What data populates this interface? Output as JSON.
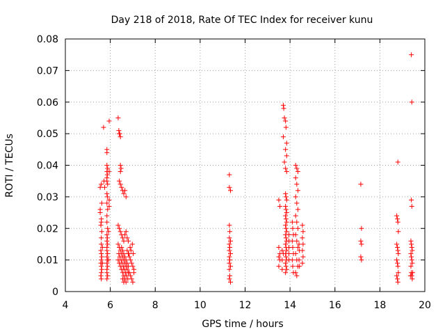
{
  "chart_data": {
    "type": "scatter",
    "title": "Day 218 of 2018, Rate Of TEC Index for receiver kunu",
    "xlabel": "GPS time / hours",
    "ylabel": "ROTI / TECUs",
    "xlim": [
      4,
      20
    ],
    "ylim": [
      0,
      0.08
    ],
    "xticks": [
      "4",
      "6",
      "8",
      "10",
      "12",
      "14",
      "16",
      "18",
      "20"
    ],
    "yticks": [
      "0",
      "0.01",
      "0.02",
      "0.03",
      "0.04",
      "0.05",
      "0.06",
      "0.07",
      "0.08"
    ],
    "grid": true,
    "marker": "+",
    "marker_color": "#ff0000",
    "series": [
      {
        "name": "ROTI",
        "points": [
          [
            5.55,
            0.033
          ],
          [
            5.6,
            0.034
          ],
          [
            5.6,
            0.023
          ],
          [
            5.6,
            0.022
          ],
          [
            5.58,
            0.021
          ],
          [
            5.62,
            0.019
          ],
          [
            5.6,
            0.017
          ],
          [
            5.6,
            0.015
          ],
          [
            5.58,
            0.013
          ],
          [
            5.6,
            0.012
          ],
          [
            5.62,
            0.011
          ],
          [
            5.6,
            0.01
          ],
          [
            5.58,
            0.009
          ],
          [
            5.6,
            0.008
          ],
          [
            5.62,
            0.007
          ],
          [
            5.6,
            0.006
          ],
          [
            5.58,
            0.005
          ],
          [
            5.6,
            0.004
          ],
          [
            5.65,
            0.014
          ],
          [
            5.65,
            0.009
          ],
          [
            5.55,
            0.026
          ],
          [
            5.55,
            0.025
          ],
          [
            5.62,
            0.028
          ],
          [
            5.7,
            0.052
          ],
          [
            5.72,
            0.035
          ],
          [
            5.75,
            0.033
          ],
          [
            5.85,
            0.045
          ],
          [
            5.85,
            0.044
          ],
          [
            5.85,
            0.04
          ],
          [
            5.88,
            0.039
          ],
          [
            5.85,
            0.038
          ],
          [
            5.87,
            0.037
          ],
          [
            5.85,
            0.036
          ],
          [
            5.85,
            0.035
          ],
          [
            5.88,
            0.034
          ],
          [
            5.85,
            0.031
          ],
          [
            5.87,
            0.03
          ],
          [
            5.85,
            0.028
          ],
          [
            5.88,
            0.026
          ],
          [
            5.85,
            0.024
          ],
          [
            5.85,
            0.022
          ],
          [
            5.88,
            0.02
          ],
          [
            5.85,
            0.018
          ],
          [
            5.87,
            0.017
          ],
          [
            5.85,
            0.016
          ],
          [
            5.88,
            0.015
          ],
          [
            5.85,
            0.014
          ],
          [
            5.85,
            0.013
          ],
          [
            5.88,
            0.012
          ],
          [
            5.85,
            0.011
          ],
          [
            5.87,
            0.01
          ],
          [
            5.85,
            0.009
          ],
          [
            5.88,
            0.008
          ],
          [
            5.85,
            0.007
          ],
          [
            5.85,
            0.006
          ],
          [
            5.88,
            0.005
          ],
          [
            5.85,
            0.004
          ],
          [
            5.92,
            0.019
          ],
          [
            5.92,
            0.01
          ],
          [
            5.95,
            0.054
          ],
          [
            5.95,
            0.038
          ],
          [
            5.95,
            0.029
          ],
          [
            5.95,
            0.027
          ],
          [
            6.35,
            0.055
          ],
          [
            6.38,
            0.051
          ],
          [
            6.4,
            0.05
          ],
          [
            6.42,
            0.05
          ],
          [
            6.45,
            0.049
          ],
          [
            6.45,
            0.04
          ],
          [
            6.48,
            0.039
          ],
          [
            6.45,
            0.038
          ],
          [
            6.4,
            0.035
          ],
          [
            6.45,
            0.034
          ],
          [
            6.5,
            0.033
          ],
          [
            6.55,
            0.032
          ],
          [
            6.6,
            0.031
          ],
          [
            6.65,
            0.032
          ],
          [
            6.7,
            0.03
          ],
          [
            6.35,
            0.021
          ],
          [
            6.4,
            0.02
          ],
          [
            6.45,
            0.019
          ],
          [
            6.5,
            0.018
          ],
          [
            6.55,
            0.017
          ],
          [
            6.6,
            0.016
          ],
          [
            6.65,
            0.018
          ],
          [
            6.7,
            0.019
          ],
          [
            6.75,
            0.017
          ],
          [
            6.8,
            0.016
          ],
          [
            6.35,
            0.015
          ],
          [
            6.4,
            0.014
          ],
          [
            6.45,
            0.013
          ],
          [
            6.5,
            0.012
          ],
          [
            6.55,
            0.011
          ],
          [
            6.6,
            0.01
          ],
          [
            6.65,
            0.009
          ],
          [
            6.7,
            0.008
          ],
          [
            6.75,
            0.007
          ],
          [
            6.8,
            0.006
          ],
          [
            6.35,
            0.01
          ],
          [
            6.4,
            0.009
          ],
          [
            6.45,
            0.008
          ],
          [
            6.5,
            0.007
          ],
          [
            6.55,
            0.006
          ],
          [
            6.6,
            0.005
          ],
          [
            6.65,
            0.004
          ],
          [
            6.7,
            0.003
          ],
          [
            6.38,
            0.012
          ],
          [
            6.42,
            0.011
          ],
          [
            6.48,
            0.01
          ],
          [
            6.52,
            0.009
          ],
          [
            6.58,
            0.008
          ],
          [
            6.62,
            0.007
          ],
          [
            6.68,
            0.006
          ],
          [
            6.72,
            0.005
          ],
          [
            6.78,
            0.004
          ],
          [
            6.82,
            0.012
          ],
          [
            6.85,
            0.011
          ],
          [
            6.9,
            0.01
          ],
          [
            6.95,
            0.009
          ],
          [
            7.0,
            0.008
          ],
          [
            7.05,
            0.007
          ],
          [
            6.85,
            0.006
          ],
          [
            6.9,
            0.005
          ],
          [
            6.95,
            0.004
          ],
          [
            7.0,
            0.003
          ],
          [
            6.88,
            0.014
          ],
          [
            6.92,
            0.013
          ],
          [
            6.98,
            0.015
          ],
          [
            7.02,
            0.012
          ],
          [
            7.05,
            0.006
          ],
          [
            6.5,
            0.014
          ],
          [
            6.55,
            0.013
          ],
          [
            6.6,
            0.012
          ],
          [
            6.65,
            0.011
          ],
          [
            6.7,
            0.01
          ],
          [
            6.75,
            0.009
          ],
          [
            6.8,
            0.008
          ],
          [
            6.55,
            0.004
          ],
          [
            6.6,
            0.003
          ],
          [
            6.75,
            0.013
          ],
          [
            6.8,
            0.012
          ],
          [
            11.3,
            0.037
          ],
          [
            11.3,
            0.033
          ],
          [
            11.35,
            0.032
          ],
          [
            11.3,
            0.021
          ],
          [
            11.32,
            0.019
          ],
          [
            11.3,
            0.017
          ],
          [
            11.35,
            0.016
          ],
          [
            11.3,
            0.015
          ],
          [
            11.32,
            0.014
          ],
          [
            11.3,
            0.013
          ],
          [
            11.35,
            0.012
          ],
          [
            11.3,
            0.011
          ],
          [
            11.32,
            0.01
          ],
          [
            11.3,
            0.009
          ],
          [
            11.35,
            0.008
          ],
          [
            11.3,
            0.007
          ],
          [
            11.32,
            0.005
          ],
          [
            11.3,
            0.004
          ],
          [
            11.35,
            0.003
          ],
          [
            13.5,
            0.029
          ],
          [
            13.55,
            0.027
          ],
          [
            13.5,
            0.014
          ],
          [
            13.55,
            0.012
          ],
          [
            13.5,
            0.011
          ],
          [
            13.55,
            0.01
          ],
          [
            13.5,
            0.008
          ],
          [
            13.7,
            0.059
          ],
          [
            13.72,
            0.058
          ],
          [
            13.75,
            0.055
          ],
          [
            13.7,
            0.049
          ],
          [
            13.75,
            0.041
          ],
          [
            13.8,
            0.054
          ],
          [
            13.82,
            0.052
          ],
          [
            13.85,
            0.047
          ],
          [
            13.8,
            0.045
          ],
          [
            13.85,
            0.043
          ],
          [
            13.8,
            0.039
          ],
          [
            13.85,
            0.038
          ],
          [
            13.8,
            0.031
          ],
          [
            13.82,
            0.03
          ],
          [
            13.85,
            0.029
          ],
          [
            13.8,
            0.027
          ],
          [
            13.82,
            0.026
          ],
          [
            13.85,
            0.025
          ],
          [
            13.8,
            0.024
          ],
          [
            13.82,
            0.023
          ],
          [
            13.85,
            0.022
          ],
          [
            13.8,
            0.021
          ],
          [
            13.82,
            0.02
          ],
          [
            13.85,
            0.019
          ],
          [
            13.8,
            0.018
          ],
          [
            13.82,
            0.017
          ],
          [
            13.85,
            0.016
          ],
          [
            13.8,
            0.015
          ],
          [
            13.82,
            0.014
          ],
          [
            13.85,
            0.013
          ],
          [
            13.8,
            0.012
          ],
          [
            13.82,
            0.011
          ],
          [
            13.85,
            0.01
          ],
          [
            13.8,
            0.009
          ],
          [
            13.82,
            0.008
          ],
          [
            13.85,
            0.007
          ],
          [
            13.8,
            0.006
          ],
          [
            13.65,
            0.013
          ],
          [
            13.65,
            0.01
          ],
          [
            13.65,
            0.007
          ],
          [
            13.7,
            0.012
          ],
          [
            13.95,
            0.018
          ],
          [
            13.95,
            0.016
          ],
          [
            13.95,
            0.014
          ],
          [
            13.95,
            0.012
          ],
          [
            13.95,
            0.01
          ],
          [
            14.1,
            0.022
          ],
          [
            14.12,
            0.02
          ],
          [
            14.15,
            0.018
          ],
          [
            14.1,
            0.016
          ],
          [
            14.12,
            0.014
          ],
          [
            14.15,
            0.012
          ],
          [
            14.1,
            0.01
          ],
          [
            14.12,
            0.008
          ],
          [
            14.15,
            0.006
          ],
          [
            14.25,
            0.04
          ],
          [
            14.3,
            0.039
          ],
          [
            14.35,
            0.038
          ],
          [
            14.25,
            0.036
          ],
          [
            14.3,
            0.034
          ],
          [
            14.35,
            0.032
          ],
          [
            14.25,
            0.03
          ],
          [
            14.3,
            0.028
          ],
          [
            14.35,
            0.026
          ],
          [
            14.25,
            0.024
          ],
          [
            14.3,
            0.022
          ],
          [
            14.35,
            0.02
          ],
          [
            14.25,
            0.018
          ],
          [
            14.3,
            0.016
          ],
          [
            14.35,
            0.014
          ],
          [
            14.25,
            0.012
          ],
          [
            14.3,
            0.01
          ],
          [
            14.35,
            0.008
          ],
          [
            14.25,
            0.006
          ],
          [
            14.3,
            0.005
          ],
          [
            14.4,
            0.015
          ],
          [
            14.42,
            0.013
          ],
          [
            14.4,
            0.01
          ],
          [
            14.42,
            0.008
          ],
          [
            14.55,
            0.021
          ],
          [
            14.58,
            0.019
          ],
          [
            14.55,
            0.017
          ],
          [
            14.58,
            0.015
          ],
          [
            14.55,
            0.013
          ],
          [
            14.58,
            0.011
          ],
          [
            14.55,
            0.009
          ],
          [
            17.15,
            0.034
          ],
          [
            17.18,
            0.02
          ],
          [
            17.15,
            0.016
          ],
          [
            17.18,
            0.015
          ],
          [
            17.15,
            0.011
          ],
          [
            17.18,
            0.01
          ],
          [
            18.8,
            0.041
          ],
          [
            18.75,
            0.024
          ],
          [
            18.78,
            0.023
          ],
          [
            18.8,
            0.022
          ],
          [
            18.82,
            0.019
          ],
          [
            18.75,
            0.015
          ],
          [
            18.78,
            0.014
          ],
          [
            18.8,
            0.013
          ],
          [
            18.82,
            0.012
          ],
          [
            18.75,
            0.01
          ],
          [
            18.78,
            0.009
          ],
          [
            18.8,
            0.008
          ],
          [
            18.82,
            0.006
          ],
          [
            18.75,
            0.005
          ],
          [
            18.78,
            0.004
          ],
          [
            18.8,
            0.003
          ],
          [
            19.4,
            0.075
          ],
          [
            19.42,
            0.06
          ],
          [
            19.4,
            0.029
          ],
          [
            19.42,
            0.027
          ],
          [
            19.38,
            0.016
          ],
          [
            19.4,
            0.015
          ],
          [
            19.42,
            0.014
          ],
          [
            19.44,
            0.013
          ],
          [
            19.38,
            0.012
          ],
          [
            19.4,
            0.011
          ],
          [
            19.42,
            0.01
          ],
          [
            19.44,
            0.009
          ],
          [
            19.38,
            0.008
          ],
          [
            19.4,
            0.006
          ],
          [
            19.42,
            0.005
          ],
          [
            19.44,
            0.004
          ],
          [
            19.36,
            0.005
          ],
          [
            19.46,
            0.006
          ]
        ]
      }
    ]
  }
}
